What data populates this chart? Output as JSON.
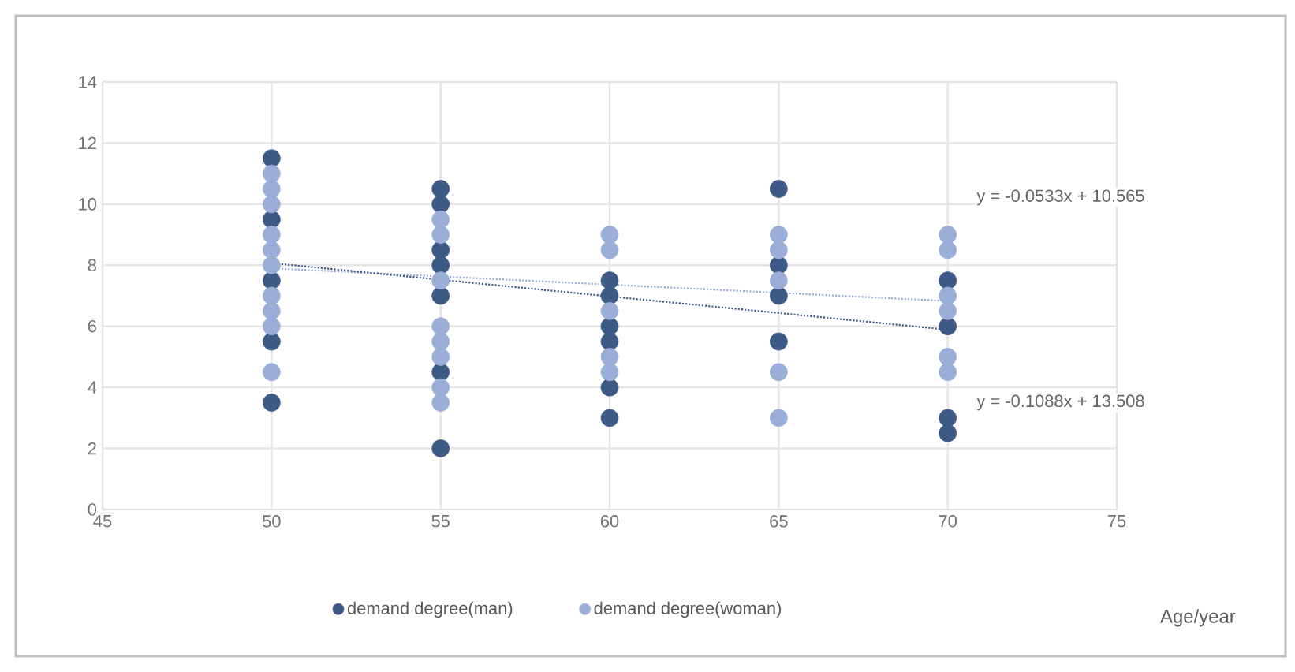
{
  "chart_data": {
    "type": "scatter",
    "xlabel": "Age/year",
    "xlim": [
      45,
      75
    ],
    "xticks": [
      45,
      50,
      55,
      60,
      65,
      70,
      75
    ],
    "ylim": [
      0,
      14
    ],
    "yticks": [
      0,
      2,
      4,
      6,
      8,
      10,
      12,
      14
    ],
    "grid": true,
    "legend": "bottom",
    "marker": "circle",
    "annotations": [
      "y = -0.0533x + 10.565",
      "y = -0.1088x + 13.508"
    ],
    "series": [
      {
        "name": "demand degree(man)",
        "color": "#3d5a87",
        "x": [
          50,
          50,
          50,
          50,
          50,
          55,
          55,
          55,
          55,
          55,
          55,
          55,
          60,
          60,
          60,
          60,
          60,
          60,
          65,
          65,
          65,
          65,
          70,
          70,
          70,
          70
        ],
        "values": [
          11.5,
          9.5,
          7.5,
          5.5,
          3.5,
          10.5,
          10,
          8.5,
          8,
          7,
          4.5,
          2,
          7.5,
          7,
          6,
          5.5,
          4,
          3,
          10.5,
          8,
          7,
          5.5,
          7.5,
          6,
          3,
          2.5
        ]
      },
      {
        "name": "demand degree(woman)",
        "color": "#9aaed8",
        "x": [
          50,
          50,
          50,
          50,
          50,
          50,
          50,
          50,
          50,
          50,
          55,
          55,
          55,
          55,
          55,
          55,
          55,
          55,
          60,
          60,
          60,
          60,
          60,
          65,
          65,
          65,
          65,
          65,
          70,
          70,
          70,
          70,
          70,
          70
        ],
        "values": [
          11,
          10.5,
          10,
          9,
          8.5,
          8,
          7,
          6.5,
          6,
          4.5,
          9.5,
          9,
          7.5,
          6,
          5.5,
          5,
          4,
          3.5,
          9,
          8.5,
          6.5,
          5,
          4.5,
          9,
          8.5,
          7.5,
          4.5,
          3,
          9,
          8.5,
          7,
          6.5,
          5,
          4.5
        ]
      },
      {
        "type": "line",
        "line_style": "dotted",
        "marker": "none",
        "color": "#9aaed8",
        "x": [
          50,
          70
        ],
        "values": [
          7.9,
          6.83
        ]
      },
      {
        "type": "line",
        "line_style": "dotted",
        "marker": "none",
        "color": "#3d5a87",
        "x": [
          50,
          70
        ],
        "values": [
          8.07,
          5.89
        ]
      }
    ]
  }
}
